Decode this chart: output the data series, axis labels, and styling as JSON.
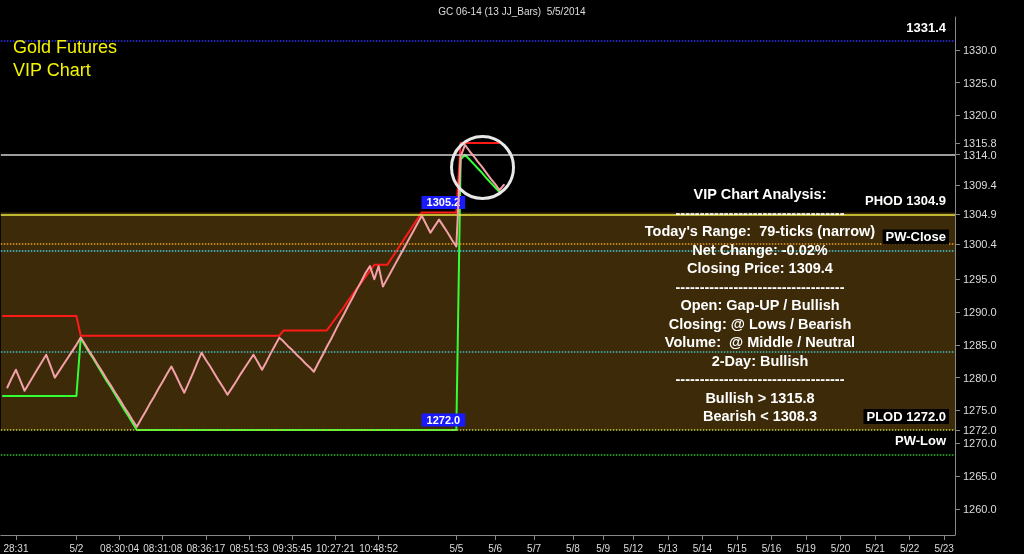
{
  "chart_data": {
    "type": "line",
    "title": "GC 06-14 (13 JJ_Bars)  5/5/2014",
    "subtitle": "Gold Futures VIP Chart",
    "categories": [
      null,
      null,
      null,
      "28:31",
      null,
      null,
      null,
      null,
      null,
      null,
      null,
      null,
      null,
      null,
      null,
      null,
      null,
      "5/2",
      null,
      null,
      null,
      null,
      null,
      null,
      null,
      null,
      null,
      "08:30:04",
      null,
      null,
      null,
      null,
      null,
      null,
      null,
      null,
      null,
      "08:31:08",
      null,
      null,
      null,
      null,
      null,
      null,
      null,
      null,
      null,
      "08:36:17",
      null,
      null,
      null,
      null,
      null,
      null,
      null,
      null,
      null,
      "08:51:53",
      null,
      null,
      null,
      null,
      null,
      null,
      null,
      null,
      null,
      "09:35:45",
      null,
      null,
      null,
      null,
      null,
      null,
      null,
      null,
      null,
      "10:27:21",
      null,
      null,
      null,
      null,
      null,
      null,
      null,
      null,
      null,
      "10:48:52",
      null,
      null,
      null,
      null,
      null,
      null,
      null,
      null,
      null,
      null,
      null,
      null,
      null,
      null,
      null,
      null,
      null,
      "5/5",
      null,
      null,
      null,
      null,
      null,
      null,
      null,
      null,
      "5/6",
      null,
      null,
      null,
      null,
      null,
      null,
      null,
      null,
      "5/7",
      null,
      null,
      null,
      null,
      null,
      null,
      null,
      null,
      "5/8",
      null,
      null,
      null,
      null,
      null,
      null,
      "5/9",
      null,
      null,
      null,
      null,
      null,
      null,
      "5/12",
      null,
      null,
      null,
      null,
      null,
      null,
      null,
      "5/13",
      null,
      null,
      null,
      null,
      null,
      null,
      null,
      "5/14",
      null,
      null,
      null,
      null,
      null,
      null,
      null,
      "5/15",
      null,
      null,
      null,
      null,
      null,
      null,
      null,
      "5/16",
      null,
      null,
      null,
      null,
      null,
      null,
      null,
      "5/19",
      null,
      null,
      null,
      null,
      null,
      null,
      null,
      "5/20",
      null,
      null,
      null,
      null,
      null,
      null,
      null,
      "5/21",
      null,
      null,
      null,
      null,
      null,
      null,
      null,
      "5/22",
      null,
      null,
      null,
      null,
      null,
      null,
      null,
      "5/23",
      null,
      null
    ],
    "ylim": [
      1256,
      1335
    ],
    "yticks": [
      {
        "value": 1260,
        "label": "1260.0"
      },
      {
        "value": 1265,
        "label": "1265.0"
      },
      {
        "value": 1270,
        "label": "1270.0"
      },
      {
        "value": 1272,
        "label": "1272.0"
      },
      {
        "value": 1275,
        "label": "1275.0"
      },
      {
        "value": 1280,
        "label": "1280.0"
      },
      {
        "value": 1285,
        "label": "1285.0"
      },
      {
        "value": 1290,
        "label": "1290.0"
      },
      {
        "value": 1295,
        "label": "1295.0"
      },
      1300.4,
      1304.9,
      1309.4,
      {
        "value": 1314,
        "label": "1314.0"
      },
      1315.8,
      {
        "value": 1320,
        "label": "1320.0"
      },
      {
        "value": 1325,
        "label": "1325.0"
      },
      {
        "value": 1330,
        "label": "1330.0"
      }
    ],
    "grid": false,
    "marker": "none",
    "line_style": "solid",
    "series": [
      {
        "color": "#f4a0a8",
        "values": [
          null,
          1278.5,
          1279.9,
          1281.2,
          1279.6,
          1278.0,
          1279.1,
          1280.2,
          1281.3,
          1282.4,
          1283.5,
          1281.8,
          1280.0,
          1281.0,
          1282.0,
          1283.0,
          1284.0,
          1285.0,
          1286.1,
          1285.1,
          1284.0,
          1283.0,
          1281.9,
          1280.9,
          1279.8,
          1278.8,
          1277.7,
          1276.7,
          1275.6,
          1274.6,
          1273.5,
          1272.5,
          1273.7,
          1274.8,
          1276.0,
          1277.1,
          1278.3,
          1279.4,
          1280.6,
          1281.7,
          1280.4,
          1279.0,
          1277.7,
          1279.2,
          1280.7,
          1282.3,
          1283.8,
          1282.7,
          1281.7,
          1280.6,
          1279.5,
          1278.5,
          1277.4,
          1278.4,
          1279.4,
          1280.5,
          1281.5,
          1282.5,
          1283.5,
          1282.4,
          1281.2,
          1282.4,
          1283.7,
          1284.9,
          1286.1,
          1285.5,
          1284.8,
          1284.2,
          1283.5,
          1282.9,
          1282.2,
          1281.6,
          1280.9,
          1282.2,
          1283.4,
          1284.7,
          1285.9,
          1287.2,
          1288.5,
          1289.7,
          1291.0,
          1292.2,
          1293.5,
          1294.7,
          1296.0,
          1297.0,
          1295.0,
          1297.0,
          1293.9,
          1295.1,
          1296.3,
          1297.5,
          1298.7,
          1299.9,
          1301.1,
          1302.3,
          1303.5,
          1304.7,
          1303.4,
          1302.1,
          1303.1,
          1304.1,
          1303.1,
          1302.1,
          1301.0,
          1300.0,
          1313.7,
          1315.5,
          1314.6,
          1313.8,
          1312.9,
          1312.1,
          1311.2,
          1310.3,
          1309.5,
          1308.6,
          1309.4,
          null,
          null,
          null,
          null,
          null,
          null,
          null,
          null,
          null,
          null,
          null,
          null,
          null,
          null,
          null,
          null,
          null,
          null,
          null,
          null,
          null,
          null,
          null,
          null,
          null,
          null,
          null,
          null,
          null,
          null,
          null,
          null,
          null,
          null,
          null,
          null,
          null,
          null,
          null,
          null,
          null,
          null,
          null,
          null,
          null,
          null,
          null,
          null,
          null,
          null,
          null,
          null,
          null,
          null,
          null,
          null,
          null,
          null,
          null,
          null,
          null,
          null,
          null,
          null,
          null,
          null,
          null,
          null,
          null,
          null,
          null,
          null,
          null,
          null,
          null,
          null,
          null,
          null,
          null,
          null,
          null,
          null,
          null,
          null,
          null,
          null,
          null,
          null,
          null,
          null,
          null,
          null,
          null,
          null,
          null,
          null,
          null,
          null,
          null,
          null,
          null,
          null,
          null,
          null
        ]
      },
      {
        "color": "#ff1a1a",
        "values": [
          1289.4,
          1289.4,
          1289.4,
          1289.4,
          1289.4,
          1289.4,
          1289.4,
          1289.4,
          1289.4,
          1289.4,
          1289.4,
          1289.4,
          1289.4,
          1289.4,
          1289.4,
          1289.4,
          1289.4,
          1289.4,
          1286.4,
          1286.4,
          1286.4,
          1286.4,
          1286.4,
          1286.4,
          1286.4,
          1286.4,
          1286.4,
          1286.4,
          1286.4,
          1286.4,
          1286.4,
          1286.4,
          1286.4,
          1286.4,
          1286.4,
          1286.4,
          1286.4,
          1286.4,
          1286.4,
          1286.4,
          1286.4,
          1286.4,
          1286.4,
          1286.4,
          1286.4,
          1286.4,
          1286.4,
          1286.4,
          1286.4,
          1286.4,
          1286.4,
          1286.4,
          1286.4,
          1286.4,
          1286.4,
          1286.4,
          1286.4,
          1286.4,
          1286.4,
          1286.4,
          1286.4,
          1286.4,
          1286.4,
          1286.4,
          1286.4,
          1287.2,
          1287.2,
          1287.2,
          1287.2,
          1287.2,
          1287.2,
          1287.2,
          1287.2,
          1287.2,
          1287.2,
          1287.2,
          1288.1,
          1289.0,
          1289.9,
          1290.8,
          1291.8,
          1292.7,
          1293.6,
          1294.5,
          1295.4,
          1296.3,
          1297.2,
          1297.2,
          1297.2,
          1297.2,
          1298.2,
          1299.2,
          1300.2,
          1301.2,
          1302.2,
          1303.2,
          1304.2,
          1305.2,
          1305.2,
          1305.2,
          1305.2,
          1305.2,
          1305.2,
          1305.2,
          1305.2,
          1305.2,
          1315.8,
          1315.8,
          1315.8,
          1315.8,
          1315.8,
          1315.8,
          1315.8,
          1315.8,
          1315.8,
          1315.8,
          null,
          null,
          null,
          null,
          null,
          null,
          null,
          null,
          null,
          null,
          null,
          null,
          null,
          null,
          null,
          null,
          null,
          null,
          null,
          null,
          null,
          null,
          null,
          null,
          null,
          null,
          null,
          null,
          null,
          null,
          null,
          null,
          null,
          null,
          null,
          null,
          null,
          null,
          null,
          null,
          null,
          null,
          null,
          null,
          null,
          null,
          null,
          null,
          null,
          null,
          null,
          null,
          null,
          null,
          null,
          null,
          null,
          null,
          null,
          null,
          null,
          null,
          null,
          null,
          null,
          null,
          null,
          null,
          null,
          null,
          null,
          null,
          null,
          null,
          null,
          null,
          null,
          null,
          null,
          null,
          null,
          null,
          null,
          null,
          null,
          null,
          null,
          null,
          null,
          null,
          null,
          null,
          null,
          null,
          null,
          null,
          null,
          null,
          null,
          null,
          null,
          null,
          null,
          null,
          null
        ]
      },
      {
        "color": "#33ff33",
        "values": [
          1277.2,
          1277.2,
          1277.2,
          1277.2,
          1277.2,
          1277.2,
          1277.2,
          1277.2,
          1277.2,
          1277.2,
          1277.2,
          1277.2,
          1277.2,
          1277.2,
          1277.2,
          1277.2,
          1277.2,
          1277.2,
          1286.0,
          1284.9,
          1283.8,
          1282.8,
          1281.7,
          1280.6,
          1279.5,
          1278.5,
          1277.4,
          1276.3,
          1275.2,
          1274.2,
          1273.1,
          1272.0,
          1272.0,
          1272.0,
          1272.0,
          1272.0,
          1272.0,
          1272.0,
          1272.0,
          1272.0,
          1272.0,
          1272.0,
          1272.0,
          1272.0,
          1272.0,
          1272.0,
          1272.0,
          1272.0,
          1272.0,
          1272.0,
          1272.0,
          1272.0,
          1272.0,
          1272.0,
          1272.0,
          1272.0,
          1272.0,
          1272.0,
          1272.0,
          1272.0,
          1272.0,
          1272.0,
          1272.0,
          1272.0,
          1272.0,
          1272.0,
          1272.0,
          1272.0,
          1272.0,
          1272.0,
          1272.0,
          1272.0,
          1272.0,
          1272.0,
          1272.0,
          1272.0,
          1272.0,
          1272.0,
          1272.0,
          1272.0,
          1272.0,
          1272.0,
          1272.0,
          1272.0,
          1272.0,
          1272.0,
          1272.0,
          1272.0,
          1272.0,
          1272.0,
          1272.0,
          1272.0,
          1272.0,
          1272.0,
          1272.0,
          1272.0,
          1272.0,
          1272.0,
          1272.0,
          1272.0,
          1272.0,
          1272.0,
          1272.0,
          1272.0,
          1272.0,
          1272.0,
          1313.3,
          1314.0,
          1313.3,
          1312.6,
          1311.9,
          1311.2,
          1310.4,
          1309.7,
          1309.0,
          1308.3,
          null,
          null,
          null,
          null,
          null,
          null,
          null,
          null,
          null,
          null,
          null,
          null,
          null,
          null,
          null,
          null,
          null,
          null,
          null,
          null,
          null,
          null,
          null,
          null,
          null,
          null,
          null,
          null,
          null,
          null,
          null,
          null,
          null,
          null,
          null,
          null,
          null,
          null,
          null,
          null,
          null,
          null,
          null,
          null,
          null,
          null,
          null,
          null,
          null,
          null,
          null,
          null,
          null,
          null,
          null,
          null,
          null,
          null,
          null,
          null,
          null,
          null,
          null,
          null,
          null,
          null,
          null,
          null,
          null,
          null,
          null,
          null,
          null,
          null,
          null,
          null,
          null,
          null,
          null,
          null,
          null,
          null,
          null,
          null,
          null,
          null,
          null,
          null,
          null,
          null,
          null,
          null,
          null,
          null,
          null,
          null,
          null,
          null,
          null,
          null,
          null,
          null,
          null,
          null,
          null
        ]
      }
    ],
    "ref_lines": [
      {
        "axis": "y",
        "value": 1331.4,
        "label": "1331.4",
        "color": "#3333ff",
        "line_style": "dotted"
      },
      {
        "axis": "y",
        "value": 1314.0,
        "color": "#d0d0d0",
        "line_style": "solid"
      },
      {
        "axis": "y",
        "value": 1304.9,
        "label": "PHOD 1304.9",
        "color": "#e8e840",
        "line_style": "solid"
      },
      {
        "axis": "y",
        "value": 1300.4,
        "color": "#e8a020",
        "line_style": "dotted"
      },
      {
        "axis": "y",
        "value": 1299.4,
        "label": "PW-Close",
        "color": "#40d0e0",
        "line_style": "dotted"
      },
      {
        "axis": "y",
        "value": 1284.0,
        "color": "#40c0c0",
        "line_style": "dotted"
      },
      {
        "axis": "y",
        "value": 1272.0,
        "label": "PLOD 1272.0",
        "color": "#c8d040",
        "line_style": "dotted"
      },
      {
        "axis": "y",
        "value": 1268.3,
        "label": "PW-Low",
        "color": "#30c030",
        "line_style": "dotted"
      }
    ],
    "bands": [
      {
        "axis": "y",
        "from": 1272.0,
        "to": 1305.2,
        "color": "#3d2a08"
      }
    ],
    "annotations": [
      {
        "text": "1305.2",
        "y": 1305.2
      },
      {
        "text": "1272.0",
        "y": 1272.0
      },
      "VIP Chart Analysis:",
      "-----------------------------------",
      "Today's Range:  79-ticks (narrow)",
      "Net Change: -0.02%",
      "Closing Price: 1309.4",
      "-----------------------------------",
      "Open: Gap-UP / Bullish",
      "Closing: @ Lows / Bearish",
      "Volume:  @ Middle / Neutral",
      "2-Day: Bullish",
      "-----------------------------------",
      "Bullish > 1315.8",
      "Bearish < 1308.3"
    ]
  }
}
